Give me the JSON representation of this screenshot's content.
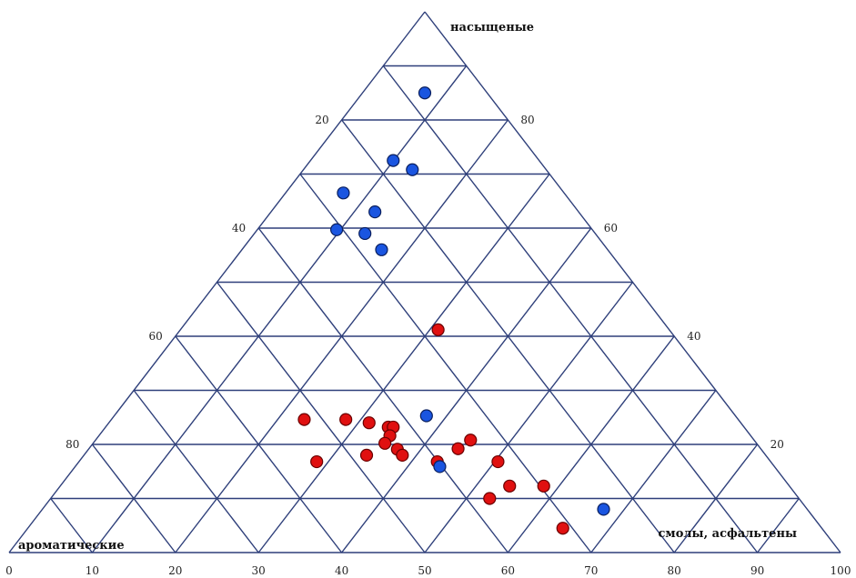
{
  "chart_data": {
    "type": "scatter",
    "subtype": "ternary",
    "corner_labels": {
      "top": "насыщеные",
      "bottom_left": "ароматические",
      "bottom_right": "смолы, асфальтены"
    },
    "bottom_axis_ticks": [
      "0",
      "10",
      "20",
      "30",
      "40",
      "50",
      "60",
      "70",
      "80",
      "90",
      "100"
    ],
    "left_axis_ticks": [
      "20",
      "40",
      "60",
      "80"
    ],
    "right_axis_ticks": [
      "80",
      "60",
      "40",
      "20"
    ],
    "xlim": [
      0,
      100
    ],
    "grid": true,
    "series": [
      {
        "color": "#e01010",
        "points": [
          {
            "x": 35.5,
            "y": 24.6
          },
          {
            "x": 40.5,
            "y": 24.6
          },
          {
            "x": 43.3,
            "y": 24.0
          },
          {
            "x": 45.6,
            "y": 23.2
          },
          {
            "x": 46.2,
            "y": 23.2
          },
          {
            "x": 45.8,
            "y": 21.6
          },
          {
            "x": 45.2,
            "y": 20.2
          },
          {
            "x": 46.7,
            "y": 19.1
          },
          {
            "x": 47.3,
            "y": 18.0
          },
          {
            "x": 43.0,
            "y": 18.0
          },
          {
            "x": 37.0,
            "y": 16.8
          },
          {
            "x": 51.5,
            "y": 16.8
          },
          {
            "x": 54.0,
            "y": 19.2
          },
          {
            "x": 55.5,
            "y": 20.8
          },
          {
            "x": 58.8,
            "y": 16.8
          },
          {
            "x": 60.2,
            "y": 12.3
          },
          {
            "x": 57.8,
            "y": 10.0
          },
          {
            "x": 64.3,
            "y": 12.3
          },
          {
            "x": 66.6,
            "y": 4.5
          },
          {
            "x": 51.6,
            "y": 41.2
          }
        ]
      },
      {
        "color": "#1a55e0",
        "points": [
          {
            "x": 50.0,
            "y": 85.0
          },
          {
            "x": 46.2,
            "y": 72.5
          },
          {
            "x": 48.5,
            "y": 70.8
          },
          {
            "x": 40.2,
            "y": 66.5
          },
          {
            "x": 44.0,
            "y": 63.0
          },
          {
            "x": 39.4,
            "y": 59.7
          },
          {
            "x": 42.8,
            "y": 59.0
          },
          {
            "x": 44.8,
            "y": 56.0
          },
          {
            "x": 50.2,
            "y": 25.3
          },
          {
            "x": 51.8,
            "y": 15.9
          },
          {
            "x": 71.5,
            "y": 8.0
          }
        ]
      }
    ]
  }
}
